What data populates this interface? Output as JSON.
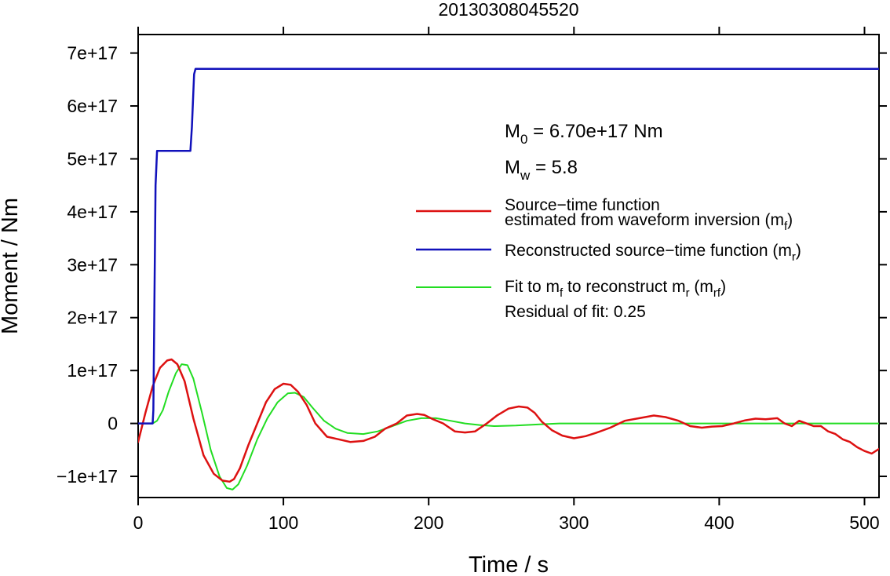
{
  "chart_data": {
    "type": "line",
    "title": "20130308045520",
    "xlabel": "Time / s",
    "ylabel": "Moment / Nm",
    "xlim": [
      0,
      510
    ],
    "ylim": [
      -1.4e+17,
      7.35e+17
    ],
    "x_ticks": [
      0,
      100,
      200,
      300,
      400,
      500
    ],
    "x_tick_labels": [
      "0",
      "100",
      "200",
      "300",
      "400",
      "500"
    ],
    "y_ticks": [
      -1e+17,
      0,
      1e+17,
      2e+17,
      3e+17,
      4e+17,
      5e+17,
      6e+17,
      7e+17
    ],
    "y_tick_labels": [
      "−1e+17",
      "0",
      "1e+17",
      "2e+17",
      "3e+17",
      "4e+17",
      "5e+17",
      "6e+17",
      "7e+17"
    ],
    "grid": false,
    "legend_position": "right",
    "annotations": {
      "m0_prefix": "M",
      "m0_sub": "0",
      "m0_value": " = 6.70e+17 Nm",
      "mw_prefix": "M",
      "mw_sub": "w",
      "mw_value": " = 5.8",
      "residual": "Residual of fit: 0.25"
    },
    "legend": [
      {
        "line1": "Source−time function",
        "line2_pre": "estimated from waveform inversion (m",
        "line2_sub": "f",
        "line2_post": ")",
        "color": "#dd1111"
      },
      {
        "line1_pre": "Reconstructed source−time function (m",
        "line1_sub": "r",
        "line1_post": ")",
        "color": "#1111bb"
      },
      {
        "line1_pre": "Fit to m",
        "line1_sub": "f",
        "line1_mid": " to reconstruct m",
        "line1_sub2": "r",
        "line1_mid2": " (m",
        "line1_sub3": "rf",
        "line1_post": ")",
        "color": "#22dd22"
      }
    ],
    "series": [
      {
        "color": "#dd1111",
        "x": [
          0,
          5,
          10,
          15,
          20,
          23,
          27,
          32,
          38,
          45,
          52,
          58,
          63,
          66,
          70,
          76,
          82,
          88,
          94,
          100,
          105,
          110,
          116,
          122,
          130,
          138,
          146,
          155,
          163,
          170,
          178,
          185,
          192,
          197,
          203,
          210,
          218,
          225,
          232,
          240,
          247,
          255,
          262,
          268,
          273,
          278,
          285,
          292,
          300,
          308,
          315,
          325,
          335,
          345,
          355,
          363,
          372,
          380,
          388,
          395,
          402,
          410,
          418,
          425,
          432,
          440,
          445,
          450,
          455,
          460,
          465,
          470,
          475,
          480,
          485,
          490,
          495,
          500,
          505,
          510
        ],
        "y": [
          -3.5e+16,
          2e+16,
          7e+16,
          1.05e+17,
          1.19e+17,
          1.21e+17,
          1.12e+17,
          8e+16,
          1e+16,
          -6e+16,
          -9.5e+16,
          -1.08e+17,
          -1.1e+17,
          -1.05e+17,
          -8.5e+16,
          -4e+16,
          0,
          4e+16,
          6.5e+16,
          7.5e+16,
          7.3e+16,
          6e+16,
          3.5e+16,
          0,
          -2.5e+16,
          -3e+16,
          -3.5e+16,
          -3.3e+16,
          -2.5e+16,
          -1e+16,
          0,
          1.5e+16,
          1.8e+16,
          1.6e+16,
          8000000000000000.0,
          0,
          -1.5e+16,
          -1.7e+16,
          -1.5e+16,
          0,
          1.5e+16,
          2.8e+16,
          3.2e+16,
          3e+16,
          2e+16,
          3000000000000000.0,
          -1.3e+16,
          -2.3e+16,
          -2.8e+16,
          -2.4e+16,
          -1.8e+16,
          -8000000000000000.0,
          5000000000000000.0,
          1e+16,
          1.5e+16,
          1.2e+16,
          5000000000000000.0,
          -5000000000000000.0,
          -8000000000000000.0,
          -6000000000000000.0,
          -5000000000000000.0,
          0,
          6000000000000000.0,
          9000000000000000.0,
          8000000000000000.0,
          1e+16,
          0,
          -5000000000000000.0,
          5000000000000000.0,
          0,
          -5000000000000000.0,
          -5000000000000000.0,
          -1.5e+16,
          -2e+16,
          -3e+16,
          -3.5e+16,
          -4.5e+16,
          -5.2e+16,
          -5.7e+16,
          -4.8e+16
        ]
      },
      {
        "color": "#1111bb",
        "x": [
          0,
          10,
          10.5,
          12,
          13,
          36,
          37,
          38.5,
          39.5,
          510
        ],
        "y": [
          0,
          0,
          2.5e+16,
          4.5e+17,
          5.15e+17,
          5.15e+17,
          5.6e+17,
          6.6e+17,
          6.7e+17,
          6.7e+17
        ]
      },
      {
        "color": "#22dd22",
        "x": [
          0,
          10,
          13,
          17,
          21,
          26,
          30,
          34,
          38,
          44,
          50,
          56,
          61,
          65,
          69,
          75,
          82,
          89,
          96,
          103,
          108,
          114,
          120,
          128,
          136,
          144,
          155,
          165,
          175,
          185,
          195,
          205,
          215,
          225,
          235,
          245,
          260,
          275,
          290,
          305,
          320,
          340,
          360,
          380,
          400,
          420,
          440,
          460,
          480,
          500,
          510
        ],
        "y": [
          0,
          0,
          5000000000000000.0,
          2.5e+16,
          6e+16,
          9.5e+16,
          1.12e+17,
          1.1e+17,
          8.5e+16,
          2e+16,
          -5e+16,
          -1e+17,
          -1.22e+17,
          -1.25e+17,
          -1.15e+17,
          -8e+16,
          -3e+16,
          1e+16,
          4e+16,
          5.7e+16,
          5.8e+16,
          5e+16,
          3e+16,
          5000000000000000.0,
          -1e+16,
          -1.8e+16,
          -2e+16,
          -1.5e+16,
          -5000000000000000.0,
          5000000000000000.0,
          1e+16,
          1e+16,
          5000000000000000.0,
          0,
          -3000000000000000.0,
          -5000000000000000.0,
          -4000000000000000.0,
          -2000000000000000.0,
          0,
          0,
          0,
          0,
          0,
          0,
          0,
          0,
          0,
          0,
          0,
          0,
          0
        ]
      }
    ]
  }
}
